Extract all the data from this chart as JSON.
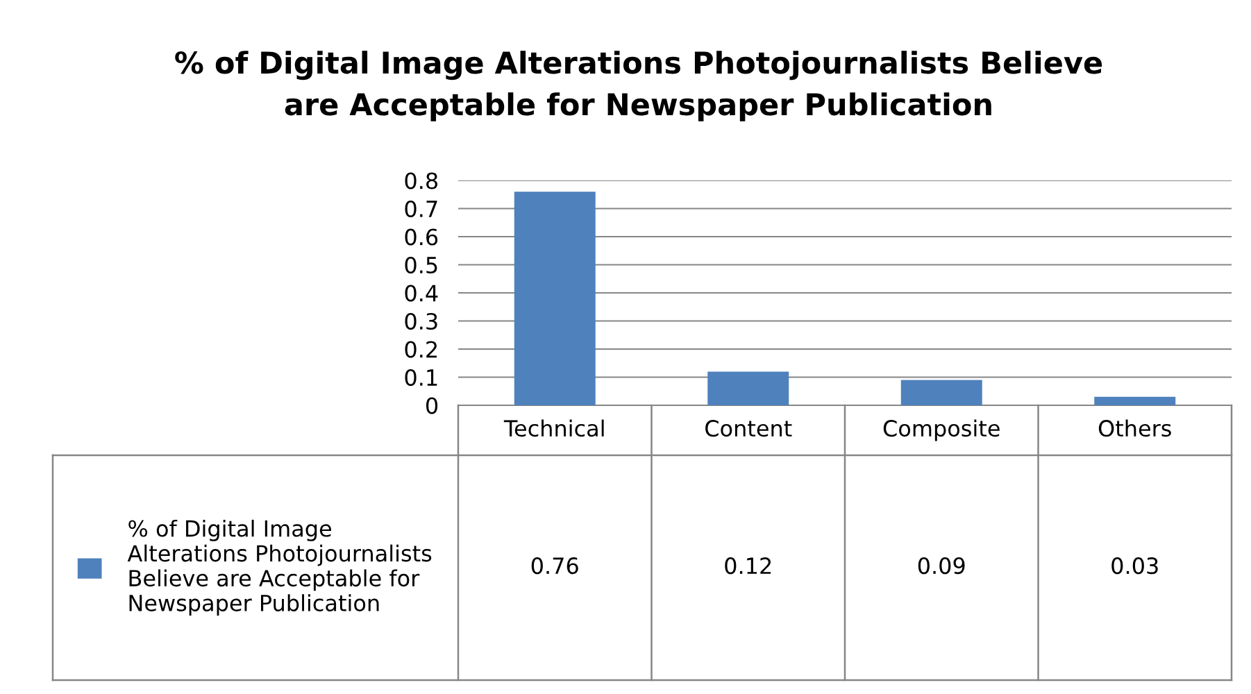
{
  "chart_data": {
    "type": "bar",
    "title": "% of Digital Image Alterations Photojournalists Believe are Acceptable for Newspaper Publication",
    "categories": [
      "Technical",
      "Content",
      "Composite",
      "Others"
    ],
    "series": [
      {
        "name": "% of Digital Image Alterations Photojournalists Believe are Acceptable for Newspaper Publication",
        "color": "#4f81bd",
        "values": [
          0.76,
          0.12,
          0.09,
          0.03
        ]
      }
    ],
    "ylim": [
      0,
      0.8
    ],
    "yticks": [
      0,
      0.1,
      0.2,
      0.3,
      0.4,
      0.5,
      0.6,
      0.7,
      0.8
    ],
    "grid": "y",
    "data_labels": true,
    "legend": "bottom"
  }
}
